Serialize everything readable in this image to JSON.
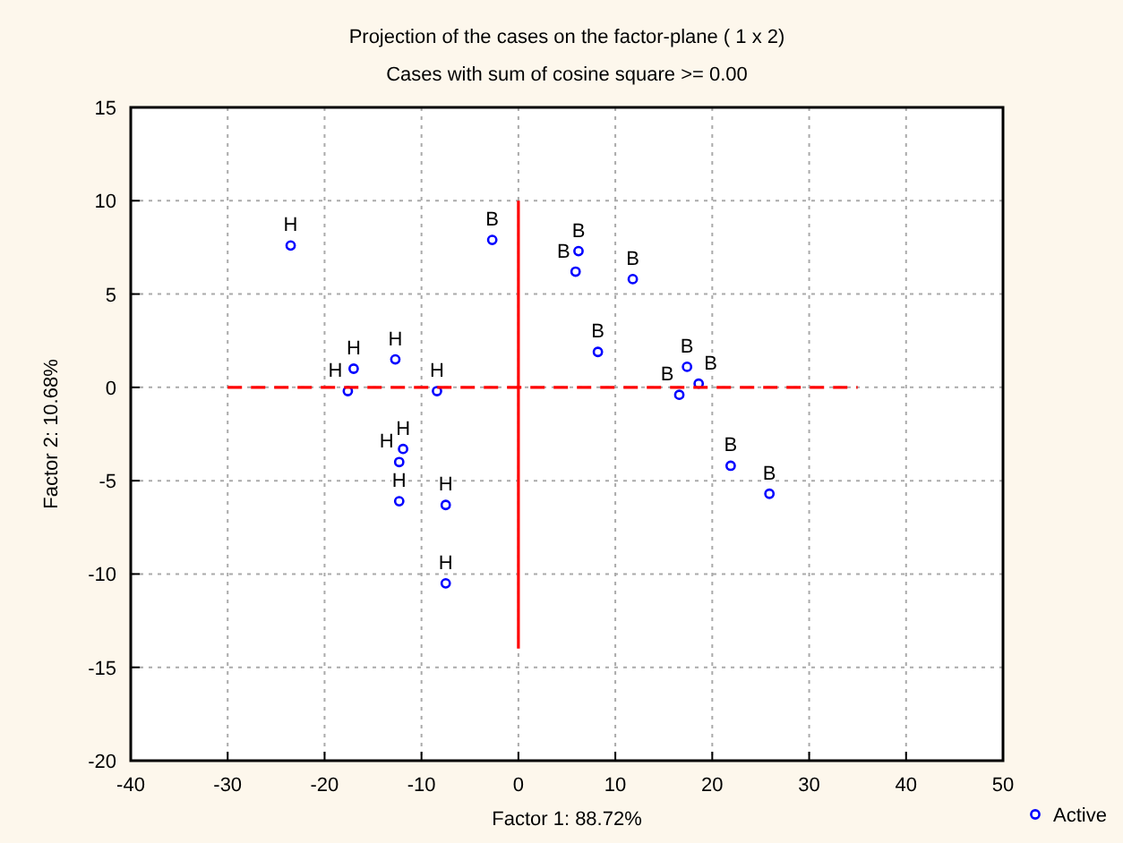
{
  "chart_data": {
    "type": "scatter",
    "title": "Projection of the cases on the factor-plane (  1 x    2)",
    "subtitle": "Cases with sum  of cosine square >=   0.00",
    "xlabel": "Factor 1:  88.72%",
    "ylabel": "Factor 2:  10.68%",
    "xlim": [
      -40,
      50
    ],
    "xticks": [
      -40,
      -30,
      -20,
      -10,
      0,
      10,
      20,
      30,
      40,
      50
    ],
    "ylim": [
      -20,
      15
    ],
    "yticks": [
      -20,
      -15,
      -10,
      -5,
      0,
      5,
      10,
      15
    ],
    "grid": true,
    "legend": "bottom right",
    "marker": "circle",
    "series": [
      {
        "name": "Active",
        "color": "#0000ff",
        "x": [
          -23.5,
          -2.7,
          -17.6,
          -17.0,
          -12.7,
          -8.4,
          -11.9,
          -12.3,
          -12.3,
          -7.5,
          -7.5,
          5.9,
          6.2,
          11.8,
          8.2,
          17.4,
          18.6,
          16.6,
          21.9,
          25.9
        ],
        "values": [
          7.6,
          7.9,
          -0.2,
          1.0,
          1.5,
          -0.2,
          -3.3,
          -4.0,
          -6.1,
          -6.3,
          -10.5,
          6.2,
          7.3,
          5.8,
          1.9,
          1.1,
          0.2,
          -0.4,
          -4.2,
          -5.7
        ]
      },
      {
        "type": "line",
        "color": "#ff0000",
        "line_style": "dashed",
        "marker": "none",
        "x": [
          -30,
          35
        ],
        "values": [
          0,
          0
        ]
      },
      {
        "type": "line",
        "color": "#ff0000",
        "line_style": "solid",
        "marker": "none",
        "x": [
          0,
          0
        ],
        "values": [
          -14,
          10
        ]
      }
    ],
    "annotations": [
      {
        "text": "H",
        "x": -23.5,
        "y": 7.6
      },
      {
        "text": "B",
        "x": -2.7,
        "y": 7.9
      },
      {
        "text": "H",
        "x": -17.6,
        "y": -0.2
      },
      {
        "text": "H",
        "x": -17.0,
        "y": 1.0
      },
      {
        "text": "H",
        "x": -12.7,
        "y": 1.5
      },
      {
        "text": "H",
        "x": -8.4,
        "y": -0.2
      },
      {
        "text": "H",
        "x": -11.9,
        "y": -3.3
      },
      {
        "text": "H",
        "x": -12.3,
        "y": -4.0
      },
      {
        "text": "H",
        "x": -12.3,
        "y": -6.1
      },
      {
        "text": "H",
        "x": -7.5,
        "y": -6.3
      },
      {
        "text": "H",
        "x": -7.5,
        "y": -10.5
      },
      {
        "text": "B",
        "x": 5.9,
        "y": 6.2
      },
      {
        "text": "B",
        "x": 6.2,
        "y": 7.3
      },
      {
        "text": "B",
        "x": 11.8,
        "y": 5.8
      },
      {
        "text": "B",
        "x": 8.2,
        "y": 1.9
      },
      {
        "text": "B",
        "x": 17.4,
        "y": 1.1
      },
      {
        "text": "B",
        "x": 18.6,
        "y": 0.2
      },
      {
        "text": "B",
        "x": 16.6,
        "y": -0.4
      },
      {
        "text": "B",
        "x": 21.9,
        "y": -4.2
      },
      {
        "text": "B",
        "x": 25.9,
        "y": -5.7
      }
    ]
  }
}
